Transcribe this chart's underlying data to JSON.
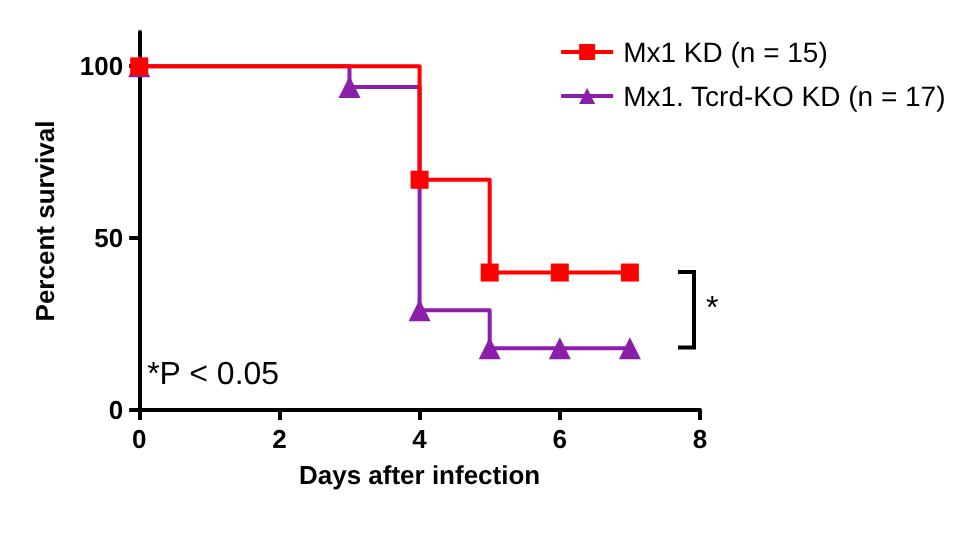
{
  "chart_data": {
    "type": "step",
    "xlabel": "Days after infection",
    "ylabel": "Percent survival",
    "xlim": [
      0,
      8
    ],
    "xticks": [
      0,
      2,
      4,
      6,
      8
    ],
    "ylim": [
      0,
      110
    ],
    "yticks": [
      0,
      50,
      100
    ],
    "grid": false,
    "legend": "top right",
    "series": [
      {
        "name": "Mx1 KD (n = 15)",
        "color": "#ff0000",
        "marker": "square",
        "x": [
          0,
          4,
          5,
          6,
          7
        ],
        "values": [
          100,
          67,
          40,
          40,
          40
        ]
      },
      {
        "name": "Mx1. Tcrd-KO KD (n = 17)",
        "color": "#8b1fa9",
        "marker": "triangle",
        "x": [
          0,
          3,
          4,
          5,
          6,
          7
        ],
        "values": [
          100,
          94,
          29,
          18,
          18,
          18
        ]
      }
    ],
    "annotations": [
      "*P < 0.05",
      "*"
    ]
  }
}
